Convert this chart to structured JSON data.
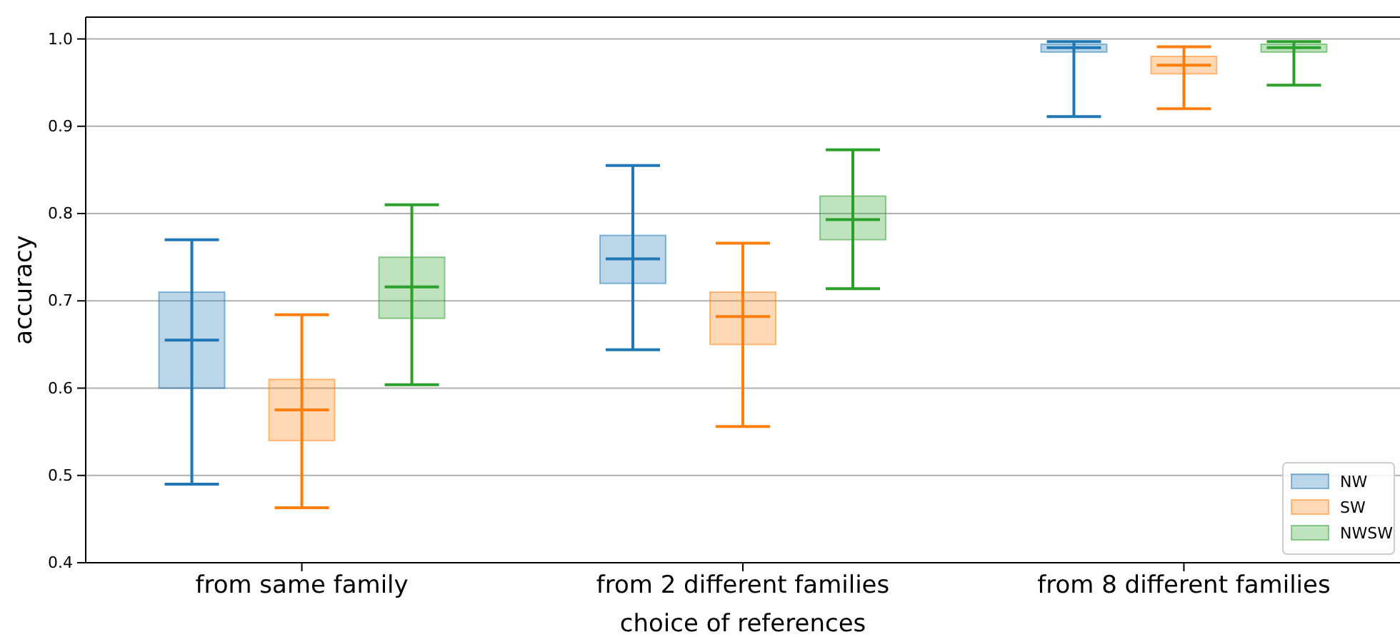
{
  "chart_data": {
    "type": "box",
    "xlabel": "choice of references",
    "ylabel": "accuracy",
    "categories": [
      "from same family",
      "from 2 different families",
      "from 8 different families"
    ],
    "ylim": [
      0.4,
      1.025
    ],
    "yticks": [
      {
        "value": 0.4,
        "label": "0.4"
      },
      {
        "value": 0.5,
        "label": "0.5"
      },
      {
        "value": 0.6,
        "label": "0.6"
      },
      {
        "value": 0.7,
        "label": "0.7"
      },
      {
        "value": 0.8,
        "label": "0.8"
      },
      {
        "value": 0.9,
        "label": "0.9"
      },
      {
        "value": 1.0,
        "label": "1.0"
      }
    ],
    "grid": "y",
    "legend": "bottom right",
    "series": [
      {
        "name": "NW",
        "color": "#1f77b4",
        "boxes": [
          {
            "low": 0.49,
            "q1": 0.6,
            "median": 0.655,
            "q3": 0.71,
            "high": 0.77
          },
          {
            "low": 0.644,
            "q1": 0.72,
            "median": 0.748,
            "q3": 0.775,
            "high": 0.855
          },
          {
            "low": 0.911,
            "q1": 0.985,
            "median": 0.99,
            "q3": 0.994,
            "high": 0.997
          }
        ]
      },
      {
        "name": "SW",
        "color": "#ff7f0e",
        "boxes": [
          {
            "low": 0.463,
            "q1": 0.54,
            "median": 0.575,
            "q3": 0.61,
            "high": 0.684
          },
          {
            "low": 0.556,
            "q1": 0.65,
            "median": 0.682,
            "q3": 0.71,
            "high": 0.766
          },
          {
            "low": 0.92,
            "q1": 0.96,
            "median": 0.97,
            "q3": 0.98,
            "high": 0.991
          }
        ]
      },
      {
        "name": "NWSW",
        "color": "#2ca02c",
        "boxes": [
          {
            "low": 0.604,
            "q1": 0.68,
            "median": 0.716,
            "q3": 0.75,
            "high": 0.81
          },
          {
            "low": 0.714,
            "q1": 0.77,
            "median": 0.793,
            "q3": 0.82,
            "high": 0.873
          },
          {
            "low": 0.947,
            "q1": 0.985,
            "median": 0.99,
            "q3": 0.994,
            "high": 0.997
          }
        ]
      }
    ]
  }
}
